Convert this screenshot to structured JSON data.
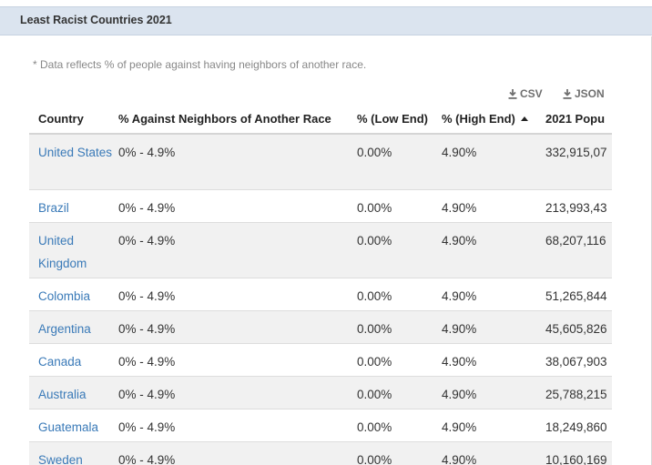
{
  "header": {
    "title": "Least Racist Countries 2021"
  },
  "note": "* Data reflects % of people against having neighbors of another race.",
  "downloads": {
    "csv": "CSV",
    "json": "JSON"
  },
  "table": {
    "columns": [
      "Country",
      "% Against Neighbors of Another Race",
      "% (Low End)",
      "% (High End)",
      "2021 Popu"
    ],
    "sorted_column": "% (High End)",
    "sort_direction": "ascending",
    "rows": [
      {
        "country": "United States",
        "range": "0% - 4.9%",
        "low": "0.00%",
        "high": "4.90%",
        "pop": "332,915,07"
      },
      {
        "country": "Brazil",
        "range": "0% - 4.9%",
        "low": "0.00%",
        "high": "4.90%",
        "pop": "213,993,43"
      },
      {
        "country": "United Kingdom",
        "range": "0% - 4.9%",
        "low": "0.00%",
        "high": "4.90%",
        "pop": "68,207,116"
      },
      {
        "country": "Colombia",
        "range": "0% - 4.9%",
        "low": "0.00%",
        "high": "4.90%",
        "pop": "51,265,844"
      },
      {
        "country": "Argentina",
        "range": "0% - 4.9%",
        "low": "0.00%",
        "high": "4.90%",
        "pop": "45,605,826"
      },
      {
        "country": "Canada",
        "range": "0% - 4.9%",
        "low": "0.00%",
        "high": "4.90%",
        "pop": "38,067,903"
      },
      {
        "country": "Australia",
        "range": "0% - 4.9%",
        "low": "0.00%",
        "high": "4.90%",
        "pop": "25,788,215"
      },
      {
        "country": "Guatemala",
        "range": "0% - 4.9%",
        "low": "0.00%",
        "high": "4.90%",
        "pop": "18,249,860"
      },
      {
        "country": "Sweden",
        "range": "0% - 4.9%",
        "low": "0.00%",
        "high": "4.90%",
        "pop": "10,160,169"
      }
    ]
  },
  "colors": {
    "header_bg": "#dbe4ef",
    "link": "#3a7ab8",
    "alt_row": "#f1f1f1",
    "note_text": "#888888"
  },
  "icons": {
    "download": "download-icon",
    "sort": "sort-ascending-icon"
  }
}
